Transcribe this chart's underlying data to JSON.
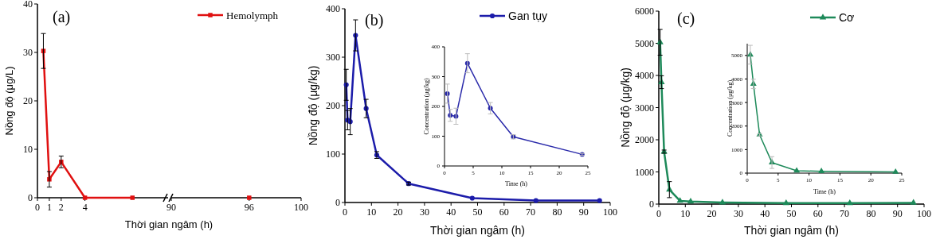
{
  "chart_data": [
    {
      "type": "line",
      "annotations": [
        "(a)"
      ],
      "xlabel": "Thời gian ngâm (h)",
      "ylabel": "Nồng độ (μg/L)",
      "x": [
        0.5,
        1,
        2,
        4,
        8
      ],
      "xlim": [
        0,
        11
      ],
      "xticks": [
        0,
        1,
        2,
        4
      ],
      "ylim": [
        0,
        40
      ],
      "yticks": [
        0,
        10,
        20,
        30,
        40
      ],
      "marker": "square",
      "legend": "top right",
      "grid": false,
      "series": [
        {
          "name": "Hemolymph",
          "color": "#e01010",
          "values": [
            30.3,
            3.8,
            7.4,
            0,
            0
          ],
          "errors": [
            3.6,
            1.6,
            1.2,
            null,
            null
          ]
        }
      ]
    },
    {
      "type": "line",
      "x": [
        96
      ],
      "xlim": [
        90,
        100
      ],
      "xticks": [
        90,
        96,
        100
      ],
      "ylim": [
        0,
        40
      ],
      "yticks": [
        0,
        10,
        20,
        30,
        40
      ],
      "tick_labels": "x",
      "marker": "square",
      "grid": false,
      "series": [
        {
          "color": "#e01010",
          "values": [
            0
          ]
        }
      ]
    },
    {
      "type": "line",
      "annotations": [
        "(b)"
      ],
      "xlabel": "Thời gian ngâm (h)",
      "ylabel": "Nồng độ (μg/kg)",
      "x": [
        0.5,
        1,
        2,
        4,
        8,
        12,
        24,
        48,
        72,
        96
      ],
      "xlim": [
        0,
        100
      ],
      "xticks": [
        0,
        10,
        20,
        30,
        40,
        50,
        60,
        70,
        80,
        90,
        100
      ],
      "ylim": [
        0,
        400
      ],
      "yticks": [
        0,
        100,
        200,
        300,
        400
      ],
      "marker": "circle",
      "legend": "top right",
      "grid": false,
      "series": [
        {
          "name": "Gan tụy",
          "color": "#1c1caa",
          "values": [
            243,
            170,
            167,
            345,
            194,
            98,
            39,
            9,
            4,
            4
          ],
          "errors": [
            32,
            20,
            27,
            32,
            19,
            7,
            3,
            null,
            null,
            null
          ]
        }
      ]
    },
    {
      "type": "line",
      "xlabel": "Time (h)",
      "ylabel": "Concentration (μg/kg)",
      "x": [
        0.5,
        1,
        2,
        4,
        8,
        12,
        24
      ],
      "xlim": [
        0,
        25
      ],
      "xticks": [
        0,
        5,
        10,
        15,
        20,
        25
      ],
      "ylim": [
        0,
        400
      ],
      "yticks": [
        0,
        100,
        200,
        300,
        400
      ],
      "marker": "circle",
      "grid": false,
      "series": [
        {
          "color": "#2a2aaa",
          "values": [
            243,
            170,
            167,
            345,
            194,
            98,
            39
          ],
          "errors": [
            32,
            20,
            27,
            32,
            19,
            7,
            3
          ]
        }
      ]
    },
    {
      "type": "line",
      "annotations": [
        "(c)"
      ],
      "xlabel": "Thời gian ngâm (h)",
      "ylabel": "Nồng độ (μg/kg)",
      "x": [
        0.5,
        1,
        2,
        4,
        8,
        12,
        24,
        48,
        72,
        96
      ],
      "xlim": [
        0,
        100
      ],
      "xticks": [
        0,
        10,
        20,
        30,
        40,
        50,
        60,
        70,
        80,
        90,
        100
      ],
      "ylim": [
        0,
        6000
      ],
      "yticks": [
        0,
        1000,
        2000,
        3000,
        4000,
        5000,
        6000
      ],
      "marker": "triangle",
      "legend": "top right",
      "grid": false,
      "series": [
        {
          "name": "Cơ",
          "color": "#1e8a5a",
          "values": [
            5030,
            3790,
            1630,
            450,
            100,
            80,
            50,
            30,
            30,
            40
          ],
          "errors": [
            400,
            200,
            50,
            250,
            null,
            null,
            null,
            null,
            null,
            null
          ]
        }
      ]
    },
    {
      "type": "line",
      "xlabel": "Time (h)",
      "ylabel": "Concentration (μg/kg)",
      "x": [
        0.5,
        1,
        2,
        4,
        8,
        12,
        24
      ],
      "xlim": [
        0,
        25
      ],
      "xticks": [
        0,
        5,
        10,
        15,
        20,
        25
      ],
      "ylim": [
        0,
        5500
      ],
      "yticks": [
        0,
        1000,
        2000,
        3000,
        4000,
        5000
      ],
      "marker": "triangle",
      "grid": false,
      "series": [
        {
          "color": "#1e8a5a",
          "values": [
            5030,
            3790,
            1630,
            450,
            100,
            80,
            50
          ],
          "errors": [
            400,
            200,
            50,
            250,
            null,
            null,
            null
          ]
        }
      ]
    }
  ]
}
